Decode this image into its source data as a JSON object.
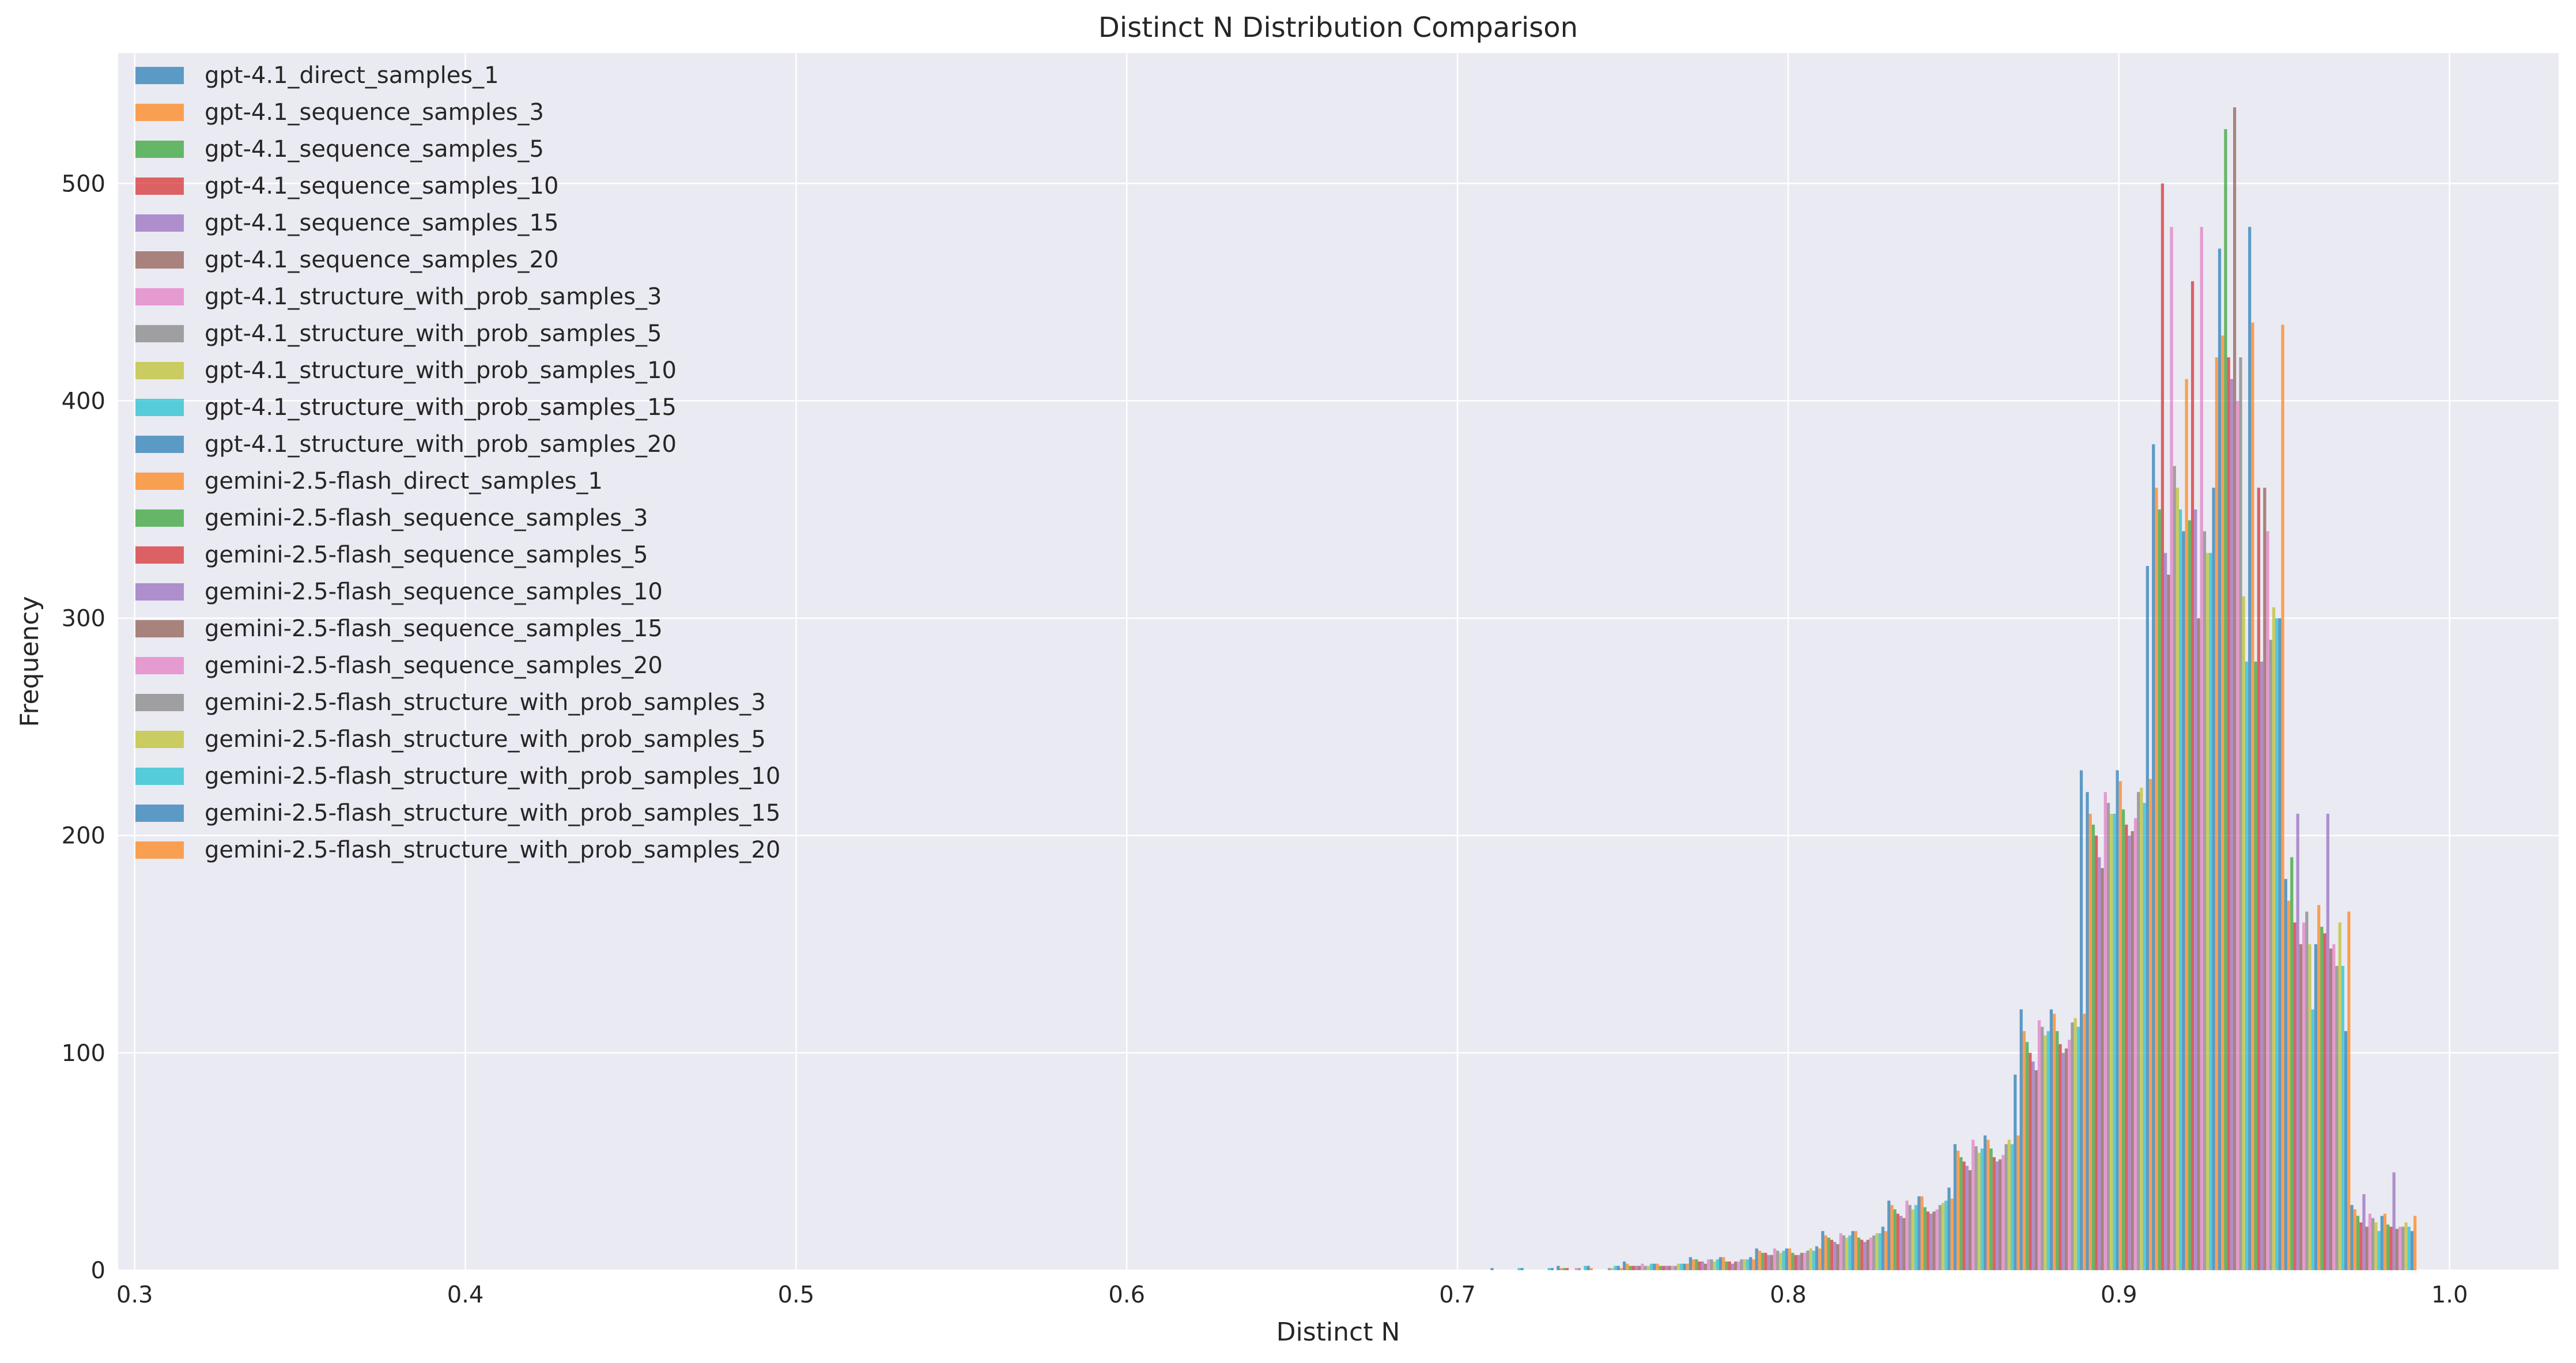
{
  "chart_data": {
    "type": "bar",
    "title": "Distinct N Distribution Comparison",
    "xlabel": "Distinct N",
    "ylabel": "Frequency",
    "xlim": [
      0.295,
      1.033
    ],
    "ylim": [
      0,
      560
    ],
    "xticks": [
      0.3,
      0.4,
      0.5,
      0.6,
      0.7,
      0.8,
      0.9,
      1.0
    ],
    "xtick_labels": [
      "0.3",
      "0.4",
      "0.5",
      "0.6",
      "0.7",
      "0.8",
      "0.9",
      "1.0"
    ],
    "yticks": [
      0,
      100,
      200,
      300,
      400,
      500
    ],
    "ytick_labels": [
      "0",
      "100",
      "200",
      "300",
      "400",
      "500"
    ],
    "grid": true,
    "legend_position": "upper-left",
    "bar_alpha": 0.7,
    "background_color": "#eaeaf2",
    "grid_color": "#ffffff",
    "palette": [
      "#1f77b4",
      "#ff7f0e",
      "#2ca02c",
      "#d62728",
      "#9467bd",
      "#8c564b",
      "#e377c2",
      "#7f7f7f",
      "#bcbd22",
      "#17becf"
    ],
    "series": [
      {
        "name": "gpt-4.1_direct_samples_1",
        "x": [
          0.72,
          0.74,
          0.76,
          0.78,
          0.8,
          0.82,
          0.84,
          0.86,
          0.88,
          0.9,
          0.92,
          0.94,
          0.96,
          0.98
        ],
        "values": [
          1,
          2,
          4,
          6,
          10,
          18,
          32,
          58,
          120,
          220,
          380,
          470,
          180,
          30
        ]
      },
      {
        "name": "gpt-4.1_sequence_samples_3",
        "x": [
          0.74,
          0.76,
          0.78,
          0.8,
          0.82,
          0.84,
          0.86,
          0.88,
          0.9,
          0.92,
          0.94,
          0.96,
          0.98
        ],
        "values": [
          1,
          3,
          5,
          9,
          16,
          30,
          55,
          110,
          210,
          360,
          430,
          170,
          28
        ]
      },
      {
        "name": "gpt-4.1_sequence_samples_5",
        "x": [
          0.74,
          0.76,
          0.78,
          0.8,
          0.82,
          0.84,
          0.86,
          0.88,
          0.9,
          0.92,
          0.94,
          0.96,
          0.98
        ],
        "values": [
          1,
          2,
          5,
          8,
          15,
          28,
          52,
          105,
          205,
          350,
          525,
          190,
          25
        ]
      },
      {
        "name": "gpt-4.1_sequence_samples_10",
        "x": [
          0.74,
          0.76,
          0.78,
          0.8,
          0.82,
          0.84,
          0.86,
          0.88,
          0.9,
          0.92,
          0.94,
          0.96,
          0.98
        ],
        "values": [
          1,
          2,
          4,
          8,
          14,
          26,
          50,
          100,
          200,
          500,
          420,
          160,
          22
        ]
      },
      {
        "name": "gpt-4.1_sequence_samples_15",
        "x": [
          0.76,
          0.78,
          0.8,
          0.82,
          0.84,
          0.86,
          0.88,
          0.9,
          0.92,
          0.94,
          0.96,
          0.98
        ],
        "values": [
          2,
          4,
          7,
          13,
          25,
          48,
          96,
          190,
          330,
          410,
          210,
          35
        ]
      },
      {
        "name": "gpt-4.1_sequence_samples_20",
        "x": [
          0.76,
          0.78,
          0.8,
          0.82,
          0.84,
          0.86,
          0.88,
          0.9,
          0.92,
          0.94,
          0.96,
          0.98
        ],
        "values": [
          2,
          3,
          7,
          12,
          24,
          46,
          92,
          185,
          320,
          535,
          150,
          20
        ]
      },
      {
        "name": "gpt-4.1_structure_with_prob_samples_3",
        "x": [
          0.74,
          0.76,
          0.78,
          0.8,
          0.82,
          0.84,
          0.86,
          0.88,
          0.9,
          0.92,
          0.94,
          0.96,
          0.98
        ],
        "values": [
          1,
          3,
          5,
          10,
          17,
          32,
          60,
          115,
          220,
          480,
          400,
          160,
          26
        ]
      },
      {
        "name": "gpt-4.1_structure_with_prob_samples_5",
        "x": [
          0.74,
          0.76,
          0.78,
          0.8,
          0.82,
          0.84,
          0.86,
          0.88,
          0.9,
          0.92,
          0.94,
          0.96,
          0.98
        ],
        "values": [
          1,
          2,
          5,
          9,
          16,
          30,
          57,
          112,
          215,
          370,
          420,
          165,
          24
        ]
      },
      {
        "name": "gpt-4.1_structure_with_prob_samples_10",
        "x": [
          0.76,
          0.78,
          0.8,
          0.82,
          0.84,
          0.86,
          0.88,
          0.9,
          0.92,
          0.94,
          0.96,
          0.98
        ],
        "values": [
          2,
          4,
          8,
          15,
          28,
          54,
          108,
          210,
          360,
          310,
          150,
          22
        ]
      },
      {
        "name": "gpt-4.1_structure_with_prob_samples_15",
        "x": [
          0.72,
          0.74,
          0.76,
          0.78,
          0.8,
          0.82,
          0.84,
          0.86,
          0.88,
          0.9,
          0.92,
          0.94,
          0.96,
          0.98
        ],
        "values": [
          1,
          2,
          3,
          5,
          9,
          16,
          30,
          56,
          110,
          210,
          350,
          280,
          120,
          18
        ]
      },
      {
        "name": "gpt-4.1_structure_with_prob_samples_20",
        "x": [
          0.72,
          0.74,
          0.76,
          0.78,
          0.8,
          0.82,
          0.84,
          0.86,
          0.88,
          0.9,
          0.92,
          0.94,
          0.96,
          0.98
        ],
        "values": [
          1,
          2,
          3,
          6,
          10,
          18,
          34,
          62,
          120,
          230,
          340,
          480,
          150,
          25
        ]
      },
      {
        "name": "gemini-2.5-flash_direct_samples_1",
        "x": [
          0.74,
          0.76,
          0.78,
          0.8,
          0.82,
          0.84,
          0.86,
          0.88,
          0.9,
          0.92,
          0.94,
          0.96,
          0.98
        ],
        "values": [
          1,
          3,
          6,
          10,
          18,
          34,
          60,
          118,
          225,
          410,
          436,
          168,
          26
        ]
      },
      {
        "name": "gemini-2.5-flash_sequence_samples_3",
        "x": [
          0.76,
          0.78,
          0.8,
          0.82,
          0.84,
          0.86,
          0.88,
          0.9,
          0.92,
          0.94,
          0.96,
          0.98
        ],
        "values": [
          2,
          4,
          8,
          15,
          29,
          56,
          110,
          212,
          345,
          280,
          158,
          21
        ]
      },
      {
        "name": "gemini-2.5-flash_sequence_samples_5",
        "x": [
          0.76,
          0.78,
          0.8,
          0.82,
          0.84,
          0.86,
          0.88,
          0.9,
          0.92,
          0.94,
          0.96,
          0.98
        ],
        "values": [
          2,
          4,
          7,
          14,
          27,
          52,
          104,
          205,
          455,
          360,
          155,
          20
        ]
      },
      {
        "name": "gemini-2.5-flash_sequence_samples_10",
        "x": [
          0.76,
          0.78,
          0.8,
          0.82,
          0.84,
          0.86,
          0.88,
          0.9,
          0.92,
          0.94,
          0.96,
          0.98
        ],
        "values": [
          2,
          3,
          7,
          13,
          26,
          50,
          100,
          200,
          350,
          280,
          210,
          45
        ]
      },
      {
        "name": "gemini-2.5-flash_sequence_samples_15",
        "x": [
          0.76,
          0.78,
          0.8,
          0.82,
          0.84,
          0.86,
          0.88,
          0.9,
          0.92,
          0.94,
          0.96,
          0.98
        ],
        "values": [
          2,
          4,
          8,
          14,
          27,
          51,
          102,
          202,
          300,
          360,
          148,
          19
        ]
      },
      {
        "name": "gemini-2.5-flash_sequence_samples_20",
        "x": [
          0.76,
          0.78,
          0.8,
          0.82,
          0.84,
          0.86,
          0.88,
          0.9,
          0.92,
          0.94,
          0.96,
          0.98
        ],
        "values": [
          2,
          4,
          8,
          15,
          28,
          53,
          106,
          208,
          480,
          340,
          150,
          20
        ]
      },
      {
        "name": "gemini-2.5-flash_structure_with_prob_samples_3",
        "x": [
          0.74,
          0.76,
          0.78,
          0.8,
          0.82,
          0.84,
          0.86,
          0.88,
          0.9,
          0.92,
          0.94,
          0.96,
          0.98
        ],
        "values": [
          1,
          2,
          5,
          9,
          16,
          30,
          58,
          114,
          220,
          340,
          290,
          140,
          20
        ]
      },
      {
        "name": "gemini-2.5-flash_structure_with_prob_samples_5",
        "x": [
          0.74,
          0.76,
          0.78,
          0.8,
          0.82,
          0.84,
          0.86,
          0.88,
          0.9,
          0.92,
          0.94,
          0.96,
          0.98
        ],
        "values": [
          1,
          3,
          5,
          10,
          17,
          31,
          60,
          116,
          222,
          330,
          305,
          160,
          22
        ]
      },
      {
        "name": "gemini-2.5-flash_structure_with_prob_samples_10",
        "x": [
          0.72,
          0.74,
          0.76,
          0.78,
          0.8,
          0.82,
          0.84,
          0.86,
          0.88,
          0.9,
          0.92,
          0.94,
          0.96,
          0.98
        ],
        "values": [
          1,
          2,
          3,
          5,
          9,
          17,
          32,
          58,
          112,
          215,
          330,
          300,
          140,
          20
        ]
      },
      {
        "name": "gemini-2.5-flash_structure_with_prob_samples_15",
        "x": [
          0.72,
          0.74,
          0.76,
          0.78,
          0.8,
          0.82,
          0.84,
          0.86,
          0.88,
          0.9,
          0.92,
          0.94,
          0.96,
          0.98
        ],
        "values": [
          1,
          2,
          3,
          6,
          11,
          20,
          38,
          90,
          230,
          324,
          360,
          300,
          110,
          18
        ]
      },
      {
        "name": "gemini-2.5-flash_structure_with_prob_samples_20",
        "x": [
          0.74,
          0.76,
          0.78,
          0.8,
          0.82,
          0.84,
          0.86,
          0.88,
          0.9,
          0.92,
          0.94,
          0.96,
          0.98
        ],
        "values": [
          1,
          3,
          5,
          10,
          18,
          33,
          62,
          118,
          226,
          420,
          435,
          165,
          25
        ]
      }
    ]
  }
}
